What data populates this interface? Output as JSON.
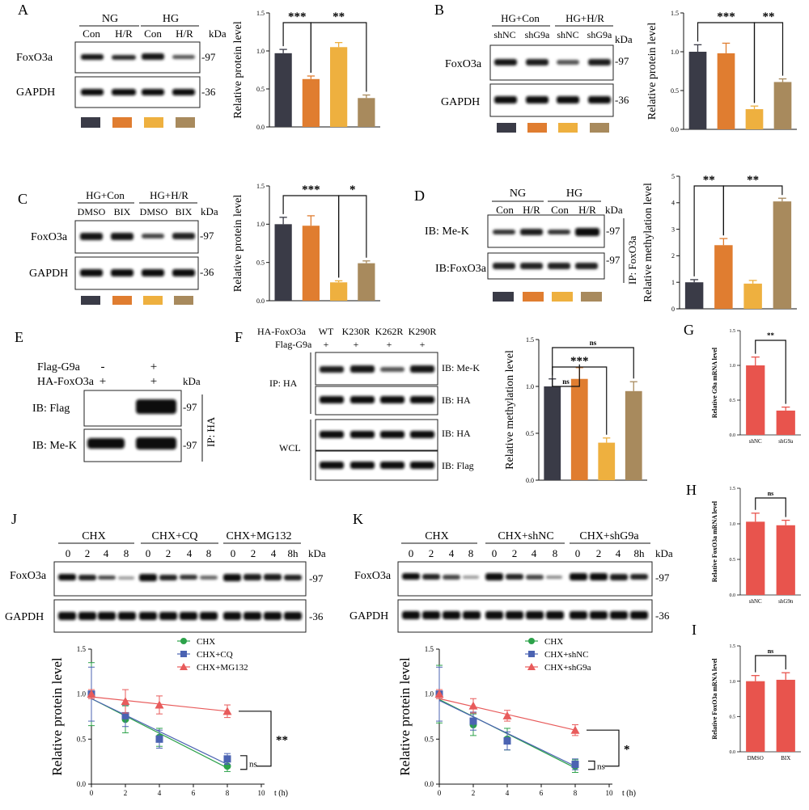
{
  "colors": {
    "dark": "#3a3b47",
    "orange": "#e07d30",
    "yellow": "#eeb03f",
    "tan": "#a88a5d",
    "red": "#e8544d",
    "green": "#2ca24a",
    "blue": "#4b63b2",
    "pink": "#e85b5b"
  },
  "panels": {
    "A": {
      "letter": "A",
      "group1": "NG",
      "group2": "HG",
      "lanes": [
        "Con",
        "H/R",
        "Con",
        "H/R"
      ],
      "kda": "kDa",
      "rows": [
        "FoxO3a",
        "GAPDH"
      ],
      "mw": [
        "-97",
        "-36"
      ]
    },
    "B": {
      "letter": "B",
      "group1": "HG+Con",
      "group2": "HG+H/R",
      "lanes": [
        "shNC",
        "shG9a",
        "shNC",
        "shG9a"
      ],
      "kda": "kDa",
      "rows": [
        "FoxO3a",
        "GAPDH"
      ],
      "mw": [
        "-97",
        "-36"
      ]
    },
    "C": {
      "letter": "C",
      "group1": "HG+Con",
      "group2": "HG+H/R",
      "lanes": [
        "DMSO",
        "BIX",
        "DMSO",
        "BIX"
      ],
      "kda": "kDa",
      "rows": [
        "FoxO3a",
        "GAPDH"
      ],
      "mw": [
        "-97",
        "-36"
      ]
    },
    "D": {
      "letter": "D",
      "group1": "NG",
      "group2": "HG",
      "lanes": [
        "Con",
        "H/R",
        "Con",
        "H/R"
      ],
      "kda": "kDa",
      "rows": [
        "IB: Me-K",
        "IB:FoxO3a"
      ],
      "mw": [
        "-97",
        "-97"
      ],
      "ip": "IP: FoxO3a"
    },
    "E": {
      "letter": "E",
      "row1": "Flag-G9a",
      "row2": "HA-FoxO3a",
      "row1_vals": [
        "-",
        "+"
      ],
      "row2_vals": [
        "+",
        "+"
      ],
      "kda": "kDa",
      "rows": [
        "IB: Flag",
        "IB: Me-K"
      ],
      "mw": [
        "-97",
        "-97"
      ],
      "ip": "IP: HA"
    },
    "F": {
      "letter": "F",
      "row1": "HA-FoxO3a",
      "row2": "Flag-G9a",
      "lanes": [
        "WT",
        "K230R",
        "K262R",
        "K290R"
      ],
      "row2_vals": [
        "+",
        "+",
        "+",
        "+"
      ],
      "rows": [
        "IB: Me-K",
        "IB: HA",
        "IB: HA",
        "IB: Flag"
      ],
      "ip": "IP: HA",
      "wcl": "WCL"
    },
    "G": {
      "letter": "G"
    },
    "H": {
      "letter": "H"
    },
    "I": {
      "letter": "I"
    },
    "J": {
      "letter": "J",
      "groups": [
        "CHX",
        "CHX+CQ",
        "CHX+MG132"
      ],
      "lanes": [
        "0",
        "2",
        "4",
        "8",
        "0",
        "2",
        "4",
        "8",
        "0",
        "2",
        "4",
        "8h"
      ],
      "kda": "kDa",
      "rows": [
        "FoxO3a",
        "GAPDH"
      ],
      "mw": [
        "-97",
        "-36"
      ]
    },
    "K": {
      "letter": "K",
      "groups": [
        "CHX",
        "CHX+shNC",
        "CHX+shG9a"
      ],
      "lanes": [
        "0",
        "2",
        "4",
        "8",
        "0",
        "2",
        "4",
        "8",
        "0",
        "2",
        "4",
        "8h"
      ],
      "kda": "kDa",
      "rows": [
        "FoxO3a",
        "GAPDH"
      ],
      "mw": [
        "-97",
        "-36"
      ]
    }
  },
  "chart_data": [
    {
      "id": "A",
      "type": "bar",
      "ylabel": "Relative protein level",
      "ylim": [
        0,
        1.5
      ],
      "yticks": [
        "0.0",
        "0.5",
        "1.0",
        "1.5"
      ],
      "values": [
        0.97,
        0.63,
        1.05,
        0.38
      ],
      "errors": [
        0.05,
        0.04,
        0.06,
        0.04
      ],
      "colors": [
        "#3a3b47",
        "#e07d30",
        "#eeb03f",
        "#a88a5d"
      ],
      "sig": [
        {
          "from": 0,
          "to": 1,
          "label": "***"
        },
        {
          "from": 1,
          "to": 3,
          "label": "**"
        }
      ]
    },
    {
      "id": "B",
      "type": "bar",
      "ylabel": "Relative protein level",
      "ylim": [
        0,
        1.5
      ],
      "yticks": [
        "0.0",
        "0.5",
        "1.0",
        "1.5"
      ],
      "values": [
        1.0,
        0.98,
        0.26,
        0.61
      ],
      "errors": [
        0.09,
        0.13,
        0.04,
        0.04
      ],
      "colors": [
        "#3a3b47",
        "#e07d30",
        "#eeb03f",
        "#a88a5d"
      ],
      "sig": [
        {
          "from": 0,
          "to": 2,
          "label": "***"
        },
        {
          "from": 2,
          "to": 3,
          "label": "**"
        }
      ]
    },
    {
      "id": "C",
      "type": "bar",
      "ylabel": "Relative protein level",
      "ylim": [
        0,
        1.5
      ],
      "yticks": [
        "0.0",
        "0.5",
        "1.0",
        "1.5"
      ],
      "values": [
        1.0,
        0.98,
        0.24,
        0.49
      ],
      "errors": [
        0.09,
        0.13,
        0.02,
        0.03
      ],
      "colors": [
        "#3a3b47",
        "#e07d30",
        "#eeb03f",
        "#a88a5d"
      ],
      "sig": [
        {
          "from": 0,
          "to": 2,
          "label": "***"
        },
        {
          "from": 2,
          "to": 3,
          "label": "*"
        }
      ]
    },
    {
      "id": "D",
      "type": "bar",
      "ylabel": "Relative methylation level",
      "ylim": [
        0,
        5
      ],
      "yticks": [
        "0",
        "1",
        "2",
        "3",
        "4",
        "5"
      ],
      "values": [
        1.0,
        2.4,
        0.95,
        4.05
      ],
      "errors": [
        0.1,
        0.25,
        0.12,
        0.12
      ],
      "colors": [
        "#3a3b47",
        "#e07d30",
        "#eeb03f",
        "#a88a5d"
      ],
      "sig": [
        {
          "from": 0,
          "to": 1,
          "label": "**"
        },
        {
          "from": 1,
          "to": 3,
          "label": "**"
        }
      ]
    },
    {
      "id": "F",
      "type": "bar",
      "ylabel": "Relative methylation level",
      "ylim": [
        0,
        1.5
      ],
      "yticks": [
        "0.0",
        "0.5",
        "1.0",
        "1.5"
      ],
      "values": [
        1.0,
        1.08,
        0.4,
        0.95
      ],
      "errors": [
        0.08,
        0.12,
        0.05,
        0.1
      ],
      "colors": [
        "#3a3b47",
        "#e07d30",
        "#eeb03f",
        "#a88a5d"
      ],
      "sig": [
        {
          "from": 0,
          "to": 1,
          "label": "ns"
        },
        {
          "from": 0,
          "to": 2,
          "label": "***"
        },
        {
          "from": 0,
          "to": 3,
          "label": "ns"
        }
      ]
    },
    {
      "id": "G",
      "type": "bar",
      "ylabel": "Relative G9a mRNA level",
      "ylim": [
        0,
        1.5
      ],
      "yticks": [
        "0.0",
        "0.5",
        "1.0",
        "1.5"
      ],
      "categories": [
        "shNC",
        "shG9a"
      ],
      "values": [
        1.0,
        0.35
      ],
      "errors": [
        0.12,
        0.05
      ],
      "colors": [
        "#e8544d",
        "#e8544d"
      ],
      "sig": [
        {
          "from": 0,
          "to": 1,
          "label": "**"
        }
      ]
    },
    {
      "id": "H",
      "type": "bar",
      "ylabel": "Relative FoxO3a mRNA level",
      "ylim": [
        0,
        1.5
      ],
      "yticks": [
        "0.0",
        "0.5",
        "1.0",
        "1.5"
      ],
      "categories": [
        "shNC",
        "shG9n"
      ],
      "values": [
        1.03,
        0.98
      ],
      "errors": [
        0.12,
        0.07
      ],
      "colors": [
        "#e8544d",
        "#e8544d"
      ],
      "sig": [
        {
          "from": 0,
          "to": 1,
          "label": "ns"
        }
      ]
    },
    {
      "id": "I",
      "type": "bar",
      "ylabel": "Relative FoxO3a mRNA level",
      "ylim": [
        0,
        1.5
      ],
      "yticks": [
        "0.0",
        "0.5",
        "1.0",
        "1.5"
      ],
      "categories": [
        "DMSO",
        "BIX"
      ],
      "values": [
        1.0,
        1.02
      ],
      "errors": [
        0.08,
        0.1
      ],
      "colors": [
        "#e8544d",
        "#e8544d"
      ],
      "sig": [
        {
          "from": 0,
          "to": 1,
          "label": "ns"
        }
      ]
    },
    {
      "id": "J",
      "type": "line",
      "ylabel": "Relative protein level",
      "xlabel": "t (h)",
      "xlim": [
        0,
        10
      ],
      "ylim": [
        0,
        1.5
      ],
      "xticks": [
        0,
        2,
        4,
        6,
        8,
        10
      ],
      "yticks": [
        "0.0",
        "0.5",
        "1.0",
        "1.5"
      ],
      "series": [
        {
          "name": "CHX",
          "marker": "circle",
          "color": "#2ca24a",
          "x": [
            0,
            2,
            4,
            8
          ],
          "y": [
            1.0,
            0.72,
            0.52,
            0.2
          ],
          "err": [
            0.35,
            0.15,
            0.1,
            0.06
          ],
          "fit": [
            0.95,
            0.18
          ]
        },
        {
          "name": "CHX+CQ",
          "marker": "square",
          "color": "#4b63b2",
          "x": [
            0,
            2,
            4,
            8
          ],
          "y": [
            1.0,
            0.76,
            0.5,
            0.28
          ],
          "err": [
            0.3,
            0.12,
            0.1,
            0.06
          ],
          "fit": [
            0.95,
            0.22
          ]
        },
        {
          "name": "CHX+MG132",
          "marker": "triangle",
          "color": "#e85b5b",
          "x": [
            0,
            2,
            4,
            8
          ],
          "y": [
            1.0,
            0.92,
            0.88,
            0.81
          ],
          "err": [
            0.05,
            0.13,
            0.1,
            0.07
          ],
          "fit": [
            0.97,
            0.81
          ]
        }
      ],
      "sig": [
        {
          "label": "**"
        },
        {
          "label": "ns"
        }
      ]
    },
    {
      "id": "K",
      "type": "line",
      "ylabel": "Relative protein level",
      "xlabel": "t (h)",
      "xlim": [
        0,
        10
      ],
      "ylim": [
        0,
        1.5
      ],
      "xticks": [
        0,
        2,
        4,
        6,
        8,
        10
      ],
      "yticks": [
        "0.0",
        "0.5",
        "1.0",
        "1.5"
      ],
      "series": [
        {
          "name": "CHX",
          "marker": "circle",
          "color": "#2ca24a",
          "x": [
            0,
            2,
            4,
            8
          ],
          "y": [
            1.0,
            0.66,
            0.5,
            0.2
          ],
          "err": [
            0.32,
            0.12,
            0.12,
            0.07
          ],
          "fit": [
            0.94,
            0.18
          ]
        },
        {
          "name": "CHX+shNC",
          "marker": "square",
          "color": "#4b63b2",
          "x": [
            0,
            2,
            4,
            8
          ],
          "y": [
            1.0,
            0.7,
            0.48,
            0.22
          ],
          "err": [
            0.3,
            0.1,
            0.1,
            0.06
          ],
          "fit": [
            0.93,
            0.2
          ]
        },
        {
          "name": "CHX+shG9a",
          "marker": "triangle",
          "color": "#e85b5b",
          "x": [
            0,
            2,
            4,
            8
          ],
          "y": [
            1.0,
            0.87,
            0.76,
            0.6
          ],
          "err": [
            0.05,
            0.08,
            0.06,
            0.06
          ],
          "fit": [
            0.95,
            0.6
          ]
        }
      ],
      "sig": [
        {
          "label": "*"
        },
        {
          "label": "ns"
        }
      ]
    }
  ]
}
